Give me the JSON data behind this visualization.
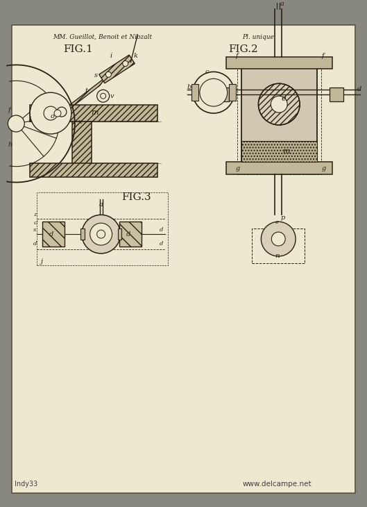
{
  "bg_color": "#888880",
  "paper_color": "#ede8d0",
  "border_color": "#5a5040",
  "line_color": "#2a2010",
  "hatch_color": "#3a3020",
  "title_left": "MM. Gueillot, Benoit et Niozalt",
  "title_right": "Pl. unique",
  "fig1_label": "FIG.1",
  "fig2_label": "FIG.2",
  "fig3_label": "FIG.3",
  "watermark": "www.delcampe.net",
  "watermark2": "Indy33"
}
